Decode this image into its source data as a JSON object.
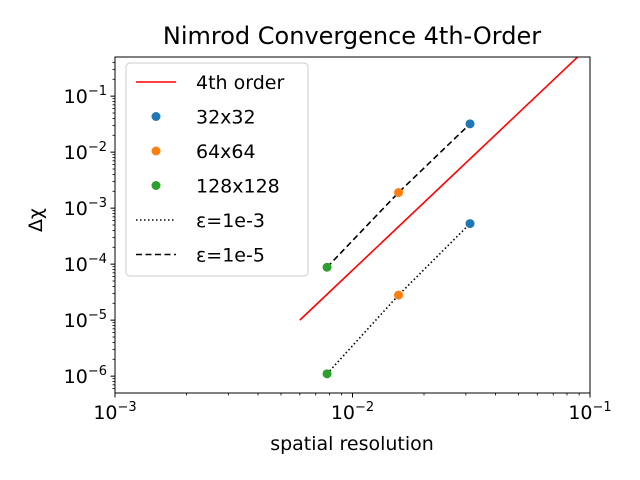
{
  "chart_data": {
    "type": "scatter",
    "title": "Nimrod Convergence 4th-Order",
    "xlabel": "spatial resolution",
    "ylabel": "Δχ",
    "xscale": "log",
    "yscale": "log",
    "xlim": [
      0.001,
      0.1
    ],
    "ylim": [
      5e-07,
      0.5
    ],
    "grid": false,
    "legend_position": "top-left",
    "x_ticks": [
      {
        "value": 0.001,
        "base": "10",
        "exp": "−3"
      },
      {
        "value": 0.01,
        "base": "10",
        "exp": "−2"
      },
      {
        "value": 0.1,
        "base": "10",
        "exp": "−1"
      }
    ],
    "y_ticks": [
      {
        "value": 1e-06,
        "base": "10",
        "exp": "−6"
      },
      {
        "value": 1e-05,
        "base": "10",
        "exp": "−5"
      },
      {
        "value": 0.0001,
        "base": "10",
        "exp": "−4"
      },
      {
        "value": 0.001,
        "base": "10",
        "exp": "−3"
      },
      {
        "value": 0.01,
        "base": "10",
        "exp": "−2"
      },
      {
        "value": 0.1,
        "base": "10",
        "exp": "−1"
      }
    ],
    "reference_line": {
      "name": "4th order",
      "color": "#ff0000",
      "x": [
        0.006,
        0.09
      ],
      "y": [
        1e-05,
        0.53
      ]
    },
    "scatter_series": [
      {
        "name": "32x32",
        "color": "#1f77b4",
        "x": [
          0.03125,
          0.03125
        ],
        "y": [
          0.032,
          0.00053
        ]
      },
      {
        "name": "64x64",
        "color": "#ff7f0e",
        "x": [
          0.015625,
          0.015625
        ],
        "y": [
          0.0019,
          2.8e-05
        ]
      },
      {
        "name": "128x128",
        "color": "#2ca02c",
        "x": [
          0.0078125,
          0.0078125
        ],
        "y": [
          8.8e-05,
          1.1e-06
        ]
      }
    ],
    "line_series": [
      {
        "name": "ε=1e-3",
        "style": "dotted",
        "color": "#000000",
        "x": [
          0.0078125,
          0.015625,
          0.03125
        ],
        "y": [
          1.1e-06,
          2.8e-05,
          0.00053
        ]
      },
      {
        "name": "ε=1e-5",
        "style": "dashed",
        "color": "#000000",
        "x": [
          0.0078125,
          0.015625,
          0.03125
        ],
        "y": [
          8.8e-05,
          0.0019,
          0.032
        ]
      }
    ]
  }
}
